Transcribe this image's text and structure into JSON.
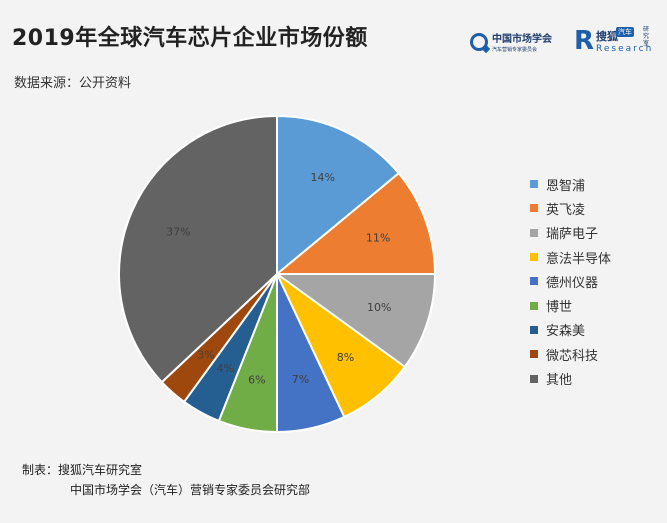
{
  "title": "2019年全球汽车芯片企业市场份额",
  "subtitle": "数据来源：公开资料",
  "logos": {
    "org_name": "中国市场学会",
    "org_sub": "汽车营销专家委员会",
    "brand_cn": "搜狐",
    "brand_tag": "汽车",
    "brand_en": "Research",
    "brand_vertical": "研究室"
  },
  "footer": {
    "line1": "制表：搜狐汽车研究室",
    "line2": "中国市场学会（汽车）营销专家委员会研究部"
  },
  "chart_data": {
    "type": "pie",
    "title": "2019年全球汽车芯片企业市场份额",
    "legend_position": "right",
    "start": "12 o'clock, clockwise",
    "slices": [
      {
        "label": "恩智浦",
        "value": 14,
        "display": "14%",
        "color": "#5b9bd5"
      },
      {
        "label": "英飞凌",
        "value": 11,
        "display": "11%",
        "color": "#ed7d31"
      },
      {
        "label": "瑞萨电子",
        "value": 10,
        "display": "10%",
        "color": "#a5a5a5"
      },
      {
        "label": "意法半导体",
        "value": 8,
        "display": "8%",
        "color": "#ffc000"
      },
      {
        "label": "德州仪器",
        "value": 7,
        "display": "7%",
        "color": "#4472c4"
      },
      {
        "label": "博世",
        "value": 6,
        "display": "6%",
        "color": "#70ad47"
      },
      {
        "label": "安森美",
        "value": 4,
        "display": "4%",
        "color": "#255e91"
      },
      {
        "label": "微芯科技",
        "value": 3,
        "display": "3%",
        "color": "#9e480e"
      },
      {
        "label": "其他",
        "value": 37,
        "display": "37%",
        "color": "#636363"
      }
    ]
  }
}
